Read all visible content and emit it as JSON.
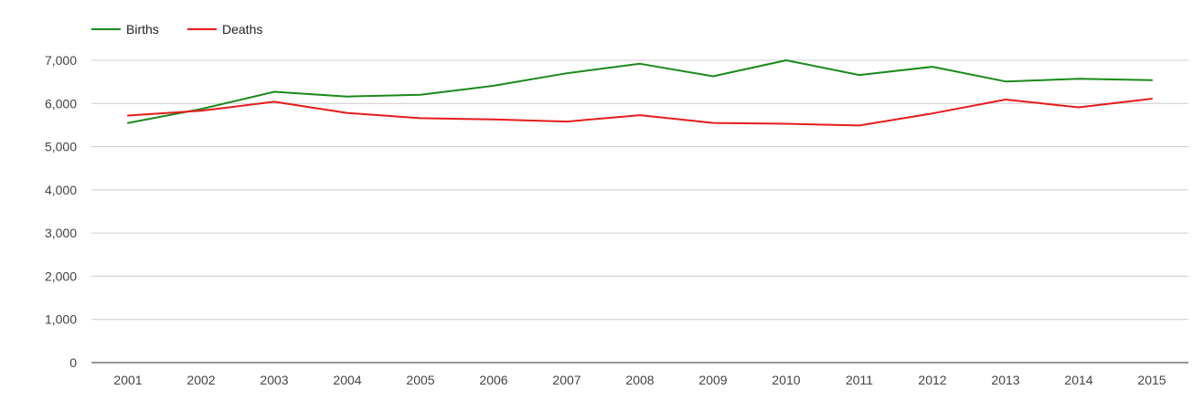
{
  "chart_data": {
    "type": "line",
    "x": [
      "2001",
      "2002",
      "2003",
      "2004",
      "2005",
      "2006",
      "2007",
      "2008",
      "2009",
      "2010",
      "2011",
      "2012",
      "2013",
      "2014",
      "2015"
    ],
    "series": [
      {
        "name": "Births",
        "color": "#1a8a1a",
        "values": [
          5550,
          5870,
          6270,
          6160,
          6200,
          6410,
          6700,
          6920,
          6630,
          7000,
          6660,
          6850,
          6510,
          6570,
          6540
        ]
      },
      {
        "name": "Deaths",
        "color": "#e61c1c",
        "values": [
          5720,
          5830,
          6040,
          5780,
          5660,
          5630,
          5580,
          5730,
          5550,
          5530,
          5490,
          5770,
          6090,
          5910,
          6110
        ]
      }
    ],
    "yticks": [
      0,
      1000,
      2000,
      3000,
      4000,
      5000,
      6000,
      7000
    ],
    "ytick_labels": [
      "0",
      "1,000",
      "2,000",
      "3,000",
      "4,000",
      "5,000",
      "6,000",
      "7,000"
    ],
    "ylim": [
      0,
      7000
    ],
    "grid": true,
    "legend_position": "top-left"
  }
}
